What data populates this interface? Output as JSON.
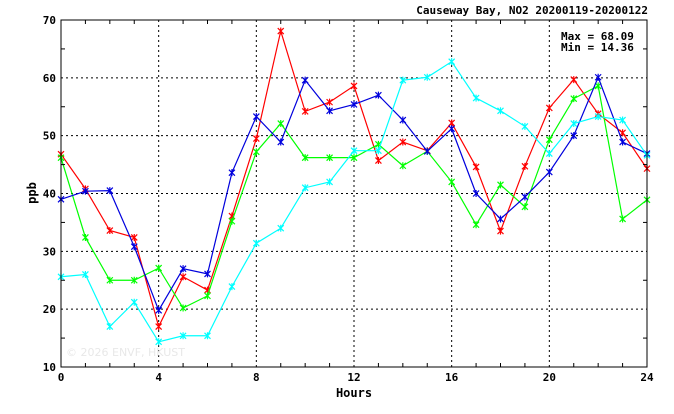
{
  "chart_data": {
    "type": "line",
    "title": "Causeway Bay, NO2 20200119-20200122",
    "xlabel": "Hours",
    "ylabel": "ppb",
    "xlim": [
      0,
      24
    ],
    "ylim": [
      10,
      70
    ],
    "xticks": [
      "0",
      "4",
      "8",
      "12",
      "16",
      "20",
      "24"
    ],
    "yticks": [
      "10",
      "20",
      "30",
      "40",
      "50",
      "60",
      "70"
    ],
    "grid": true,
    "stats": {
      "max_label": "Max = 68.09",
      "min_label": "Min = 14.36"
    },
    "watermark": "© 2026 ENVF, HKUST",
    "x": [
      0,
      1,
      2,
      3,
      4,
      5,
      6,
      7,
      8,
      9,
      10,
      11,
      12,
      13,
      14,
      15,
      16,
      17,
      18,
      19,
      20,
      21,
      22,
      23,
      24
    ],
    "series": [
      {
        "color": "#ff0000",
        "values": [
          46.8,
          40.8,
          33.6,
          32.4,
          17.0,
          25.6,
          23.3,
          36.1,
          49.5,
          68.09,
          54.2,
          55.8,
          58.6,
          45.7,
          48.9,
          47.4,
          52.2,
          44.6,
          33.5,
          44.7,
          54.8,
          59.7,
          53.8,
          50.5,
          44.3
        ]
      },
      {
        "color": "#00ff00",
        "values": [
          46.2,
          32.4,
          25.0,
          25.0,
          27.1,
          20.2,
          22.3,
          35.2,
          47.2,
          52.1,
          46.2,
          46.2,
          46.2,
          48.5,
          44.8,
          47.3,
          42.0,
          34.6,
          41.5,
          37.7,
          49.3,
          56.4,
          58.6,
          35.6,
          38.9
        ]
      },
      {
        "color": "#0000dd",
        "values": [
          39.0,
          40.4,
          40.5,
          30.8,
          19.8,
          27.0,
          26.1,
          43.6,
          53.3,
          48.9,
          59.6,
          54.3,
          55.4,
          57.0,
          52.7,
          47.3,
          51.2,
          40.0,
          35.6,
          39.4,
          43.7,
          50.0,
          60.1,
          48.9,
          46.9
        ]
      },
      {
        "color": "#00ffff",
        "values": [
          25.6,
          26.0,
          17.0,
          21.2,
          14.36,
          15.4,
          15.4,
          23.9,
          31.4,
          34.0,
          41.0,
          42.0,
          47.4,
          47.4,
          59.6,
          60.1,
          62.8,
          56.5,
          54.3,
          51.6,
          46.9,
          52.1,
          53.3,
          52.7,
          46.6
        ]
      }
    ]
  }
}
